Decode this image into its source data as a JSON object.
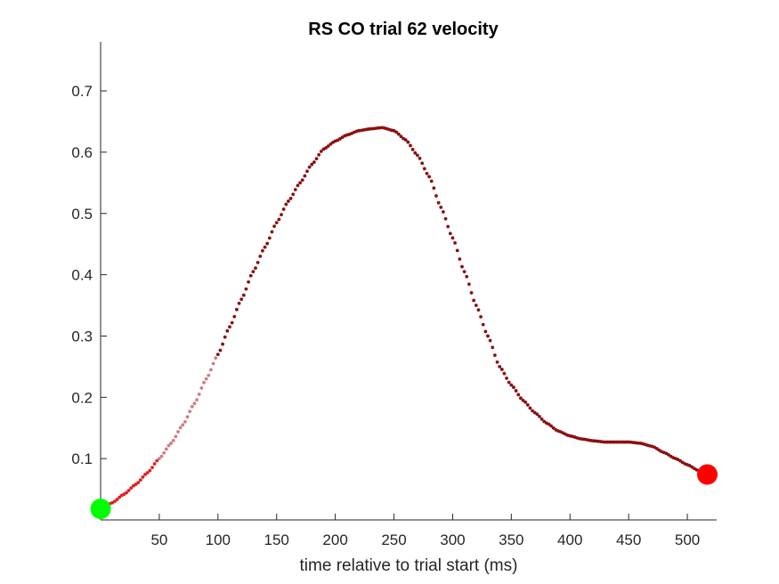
{
  "chart_data": {
    "type": "scatter",
    "title": "RS  CO trial 62 velocity",
    "xlabel": "time relative to trial start (ms)",
    "ylabel": "",
    "xlim": [
      0,
      525
    ],
    "ylim": [
      0,
      0.78
    ],
    "xticks": [
      50,
      100,
      150,
      200,
      250,
      300,
      350,
      400,
      450,
      500
    ],
    "xtick_labels": [
      "50",
      "100",
      "150",
      "200",
      "250",
      "300",
      "350",
      "400",
      "450",
      "500"
    ],
    "yticks": [
      0.1,
      0.2,
      0.3,
      0.4,
      0.5,
      0.6,
      0.7
    ],
    "ytick_labels": [
      "0.1",
      "0.2",
      "0.3",
      "0.4",
      "0.5",
      "0.6",
      "0.7"
    ],
    "grid": false,
    "series": [
      {
        "role": "trace-segment-1",
        "color": "#e02020",
        "x": [
          0,
          10,
          20,
          30,
          40,
          50
        ],
        "y": [
          0.018,
          0.028,
          0.042,
          0.058,
          0.077,
          0.1
        ]
      },
      {
        "role": "trace-segment-2",
        "color": "#c98085",
        "x": [
          50,
          60,
          70,
          80,
          90,
          100
        ],
        "y": [
          0.1,
          0.125,
          0.155,
          0.19,
          0.23,
          0.27
        ]
      },
      {
        "role": "trace-segment-3",
        "color": "#8b1010",
        "x": [
          100,
          110,
          120,
          130,
          140,
          150,
          160,
          170,
          180,
          190,
          200,
          210,
          220,
          230,
          240,
          250,
          260,
          270,
          280,
          290,
          300,
          310,
          320,
          330,
          340,
          350,
          360,
          370,
          380,
          390,
          400,
          410,
          420,
          430,
          440,
          450,
          460,
          470,
          480,
          490,
          500,
          510,
          517
        ],
        "y": [
          0.27,
          0.315,
          0.36,
          0.405,
          0.445,
          0.485,
          0.52,
          0.55,
          0.58,
          0.605,
          0.618,
          0.628,
          0.635,
          0.638,
          0.64,
          0.635,
          0.62,
          0.595,
          0.56,
          0.51,
          0.46,
          0.405,
          0.35,
          0.3,
          0.25,
          0.22,
          0.195,
          0.175,
          0.158,
          0.145,
          0.137,
          0.132,
          0.129,
          0.127,
          0.127,
          0.127,
          0.125,
          0.12,
          0.11,
          0.1,
          0.09,
          0.08,
          0.074
        ]
      }
    ],
    "markers": [
      {
        "name": "start",
        "x": 0,
        "y": 0.018,
        "color": "#00ff00"
      },
      {
        "name": "end",
        "x": 517,
        "y": 0.074,
        "color": "#ff0000"
      }
    ]
  }
}
